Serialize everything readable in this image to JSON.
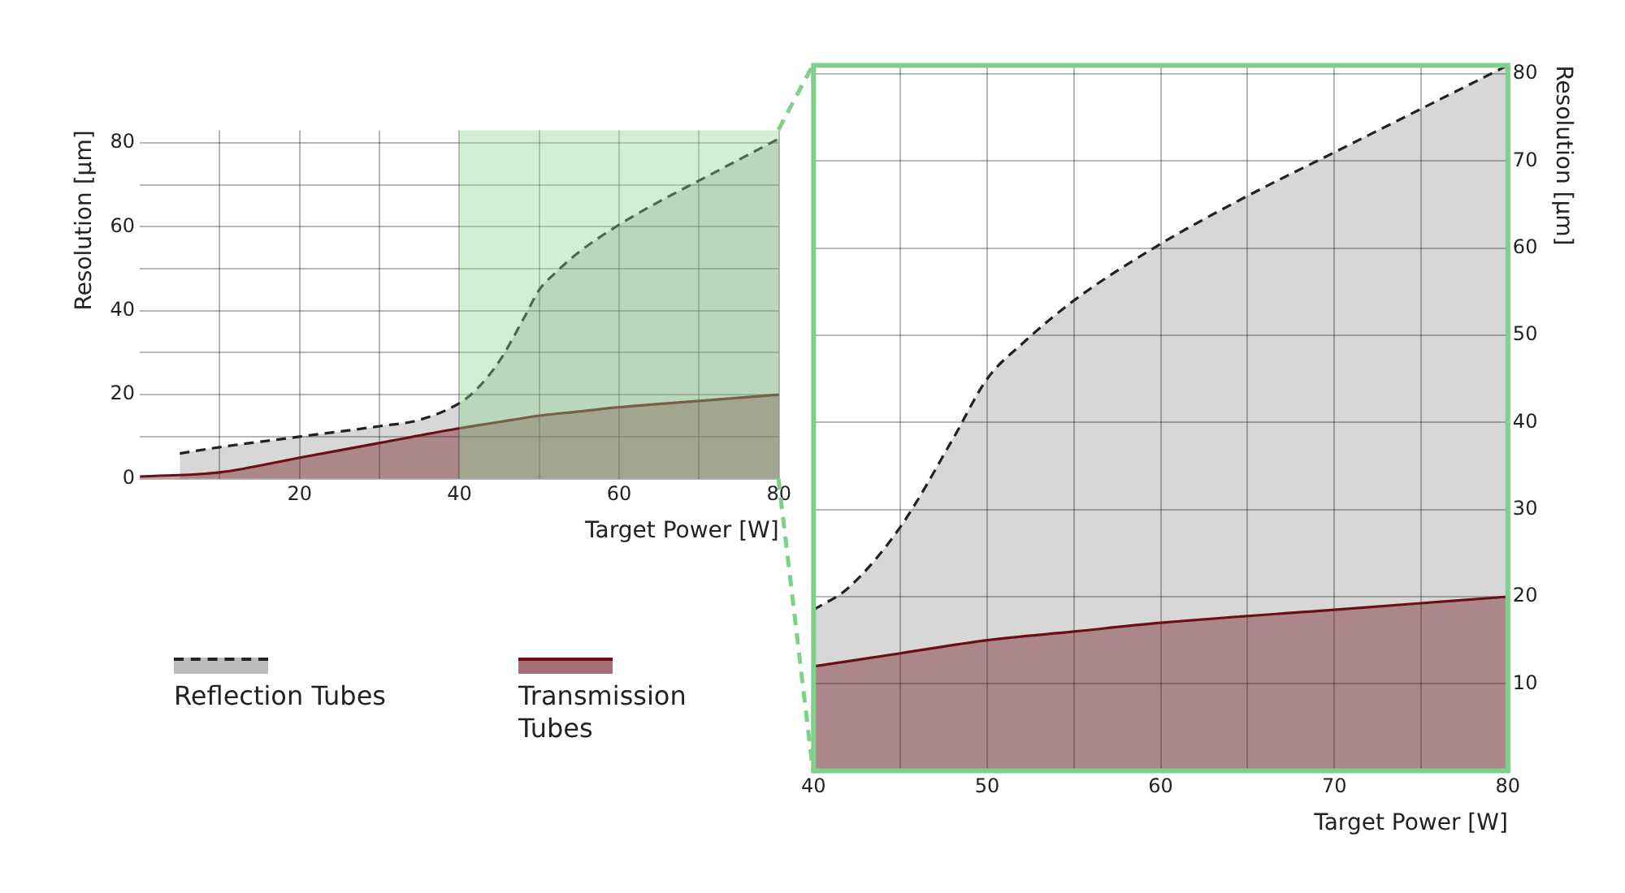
{
  "chart_data": [
    {
      "type": "area",
      "xlabel": "Target Power [W]",
      "ylabel": "Resolution [µm]",
      "xlim": [
        0,
        80
      ],
      "ylim": [
        0,
        83
      ],
      "xticks": [
        {
          "value": 10,
          "label": null
        },
        20,
        {
          "value": 30,
          "label": null
        },
        40,
        {
          "value": 50,
          "label": null
        },
        60,
        {
          "value": 70,
          "label": null
        },
        80
      ],
      "yticks": [
        0,
        {
          "value": 10,
          "label": null
        },
        20,
        {
          "value": 30,
          "label": null
        },
        40,
        {
          "value": 50,
          "label": null
        },
        60,
        {
          "value": 70,
          "label": null
        },
        80
      ],
      "grid": true,
      "legend": "bottom",
      "bands": [
        {
          "axis": "x",
          "from": 40,
          "to": 80,
          "color": "#8fd694"
        }
      ],
      "series": [
        {
          "name": "Reflection Tubes",
          "color": "#222222",
          "line_style": "dashed",
          "x": [
            5,
            10,
            20,
            30,
            35,
            40,
            42,
            45,
            48,
            50,
            52,
            55,
            60,
            65,
            70,
            75,
            80
          ],
          "values": [
            6,
            7.5,
            10,
            12.5,
            14,
            18,
            21,
            28,
            38,
            45,
            49,
            54,
            60.5,
            66,
            71,
            76,
            81
          ]
        },
        {
          "name": "Transmission Tubes",
          "color": "#6b0f16",
          "line_style": "solid",
          "x": [
            0,
            10,
            20,
            30,
            40,
            45,
            50,
            55,
            60,
            70,
            80
          ],
          "values": [
            0.5,
            1.5,
            5,
            8.5,
            12,
            13.5,
            15,
            16,
            17,
            18.5,
            20
          ]
        }
      ]
    },
    {
      "type": "area",
      "xlabel": "Target Power [W]",
      "y2label": "Resolution [µm]",
      "xlim": [
        40,
        80
      ],
      "y2lim": [
        0,
        81
      ],
      "xticks": [
        40,
        {
          "value": 45,
          "label": null
        },
        50,
        {
          "value": 55,
          "label": null
        },
        60,
        {
          "value": 65,
          "label": null
        },
        70,
        {
          "value": 75,
          "label": null
        },
        80
      ],
      "y2ticks": [
        10,
        20,
        30,
        40,
        50,
        60,
        70,
        80
      ],
      "grid": true,
      "series": [
        {
          "color": "#222222",
          "line_style": "dashed",
          "axis": "y2",
          "x": [
            40,
            42,
            45,
            48,
            50,
            52,
            55,
            60,
            65,
            70,
            75,
            80
          ],
          "values": [
            18.5,
            21,
            28,
            38,
            45,
            49,
            54,
            60.5,
            66,
            71,
            76,
            81
          ]
        },
        {
          "color": "#6b0f16",
          "line_style": "solid",
          "axis": "y2",
          "x": [
            40,
            45,
            50,
            55,
            60,
            70,
            80
          ],
          "values": [
            12,
            13.5,
            15,
            16,
            17,
            18.5,
            20
          ]
        }
      ]
    }
  ]
}
